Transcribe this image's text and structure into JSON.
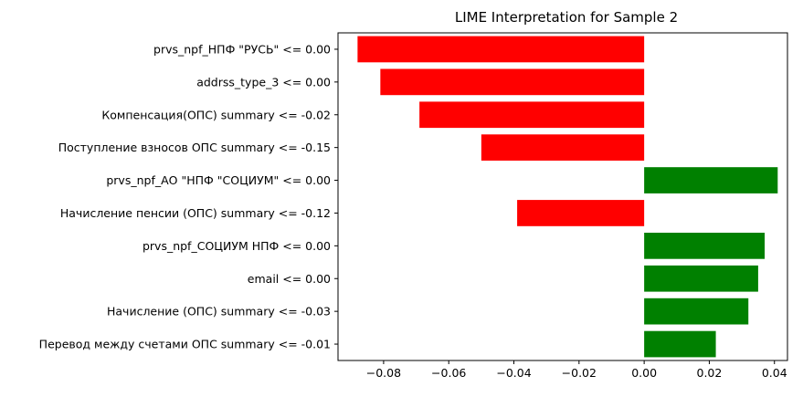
{
  "chart_data": {
    "type": "bar",
    "orientation": "horizontal",
    "title": "LIME Interpretation for Sample 2",
    "xlabel": "",
    "ylabel": "",
    "xlim": [
      -0.094,
      0.044
    ],
    "xticks": [
      -0.08,
      -0.06,
      -0.04,
      -0.02,
      0.0,
      0.02,
      0.04
    ],
    "xtick_labels": [
      "−0.08",
      "−0.06",
      "−0.04",
      "−0.02",
      "0.00",
      "0.02",
      "0.04"
    ],
    "grid": false,
    "legend": "none",
    "positive_color": "#008000",
    "negative_color": "#ff0000",
    "categories": [
      "prvs_npf_НПФ \"РУСЬ\" <= 0.00",
      "addrss_type_3 <= 0.00",
      "Компенсация(ОПС) summary <= -0.02",
      "Поступление взносов ОПС summary <= -0.15",
      "prvs_npf_АО \"НПФ \"СОЦИУМ\" <= 0.00",
      "Начисление пенсии (ОПС) summary <= -0.12",
      "prvs_npf_СОЦИУМ НПФ <= 0.00",
      "email <= 0.00",
      "Начисление (ОПС) summary <= -0.03",
      "Перевод между счетами ОПС summary <= -0.01"
    ],
    "values": [
      -0.088,
      -0.081,
      -0.069,
      -0.05,
      0.041,
      -0.039,
      0.037,
      0.035,
      0.032,
      0.022
    ]
  }
}
